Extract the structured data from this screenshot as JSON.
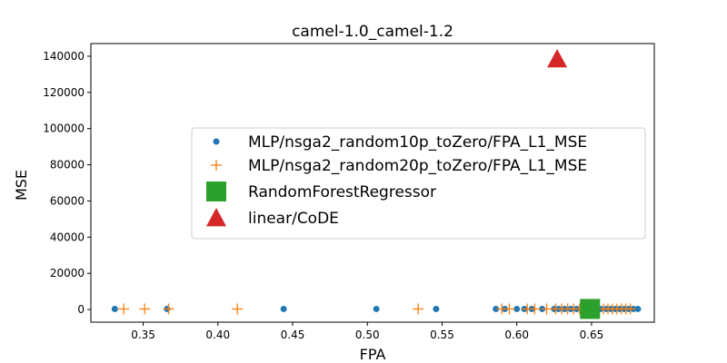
{
  "chart_data": {
    "type": "scatter",
    "title": "camel-1.0_camel-1.2",
    "xlabel": "FPA",
    "ylabel": "MSE",
    "xlim": [
      0.315,
      0.692
    ],
    "ylim": [
      -7000,
      147000
    ],
    "xticks": [
      0.35,
      0.4,
      0.45,
      0.5,
      0.55,
      0.6,
      0.65
    ],
    "xtick_labels": [
      "0.35",
      "0.40",
      "0.45",
      "0.50",
      "0.55",
      "0.60",
      "0.65"
    ],
    "yticks": [
      0,
      20000,
      40000,
      60000,
      80000,
      100000,
      120000,
      140000
    ],
    "ytick_labels": [
      "0",
      "20000",
      "40000",
      "60000",
      "80000",
      "100000",
      "120000",
      "140000"
    ],
    "grid": false,
    "legend_position": "center-right",
    "series": [
      {
        "name": "MLP/nsga2_random10p_toZero/FPA_L1_MSE",
        "marker": "dot",
        "color": "#1f77b4",
        "x": [
          0.331,
          0.366,
          0.444,
          0.506,
          0.546,
          0.586,
          0.592,
          0.6,
          0.605,
          0.61,
          0.617,
          0.625,
          0.628,
          0.632,
          0.636,
          0.64,
          0.644,
          0.648,
          0.652,
          0.656,
          0.66,
          0.663,
          0.666,
          0.669,
          0.672,
          0.675,
          0.678,
          0.681
        ],
        "y": [
          300,
          300,
          300,
          300,
          300,
          300,
          300,
          300,
          300,
          300,
          300,
          300,
          300,
          300,
          300,
          300,
          300,
          300,
          300,
          300,
          300,
          300,
          300,
          300,
          300,
          300,
          300,
          300
        ]
      },
      {
        "name": "MLP/nsga2_random20p_toZero/FPA_L1_MSE",
        "marker": "plus",
        "color": "#ff7f0e",
        "x": [
          0.337,
          0.351,
          0.367,
          0.413,
          0.534,
          0.59,
          0.595,
          0.607,
          0.612,
          0.62,
          0.626,
          0.63,
          0.634,
          0.638,
          0.642,
          0.646,
          0.65,
          0.654,
          0.658,
          0.661,
          0.664,
          0.667,
          0.67,
          0.673,
          0.676
        ],
        "y": [
          300,
          300,
          300,
          300,
          300,
          300,
          300,
          300,
          300,
          300,
          300,
          300,
          300,
          300,
          300,
          300,
          300,
          300,
          300,
          300,
          300,
          300,
          300,
          300,
          300
        ]
      },
      {
        "name": "RandomForestRegressor",
        "marker": "square",
        "color": "#2ca02c",
        "x": [
          0.649
        ],
        "y": [
          300
        ]
      },
      {
        "name": "linear/CoDE",
        "marker": "triangle",
        "color": "#d62728",
        "x": [
          0.627
        ],
        "y": [
          138500
        ]
      }
    ]
  }
}
